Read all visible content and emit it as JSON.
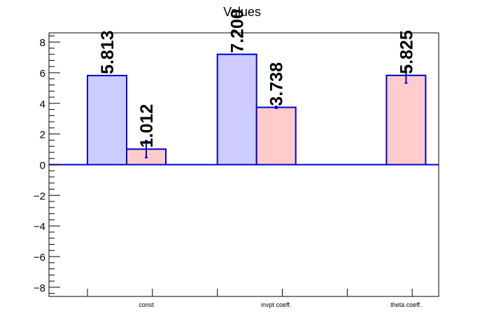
{
  "chart_data": {
    "type": "bar",
    "title": "Values",
    "xlabel": "",
    "ylabel": "",
    "ylim": [
      -8.6,
      8.6
    ],
    "yticks": [
      -8,
      -6,
      -4,
      -2,
      0,
      2,
      4,
      6,
      8
    ],
    "ytick_labels": [
      "−8",
      "−6",
      "−4",
      "−2",
      "0",
      "2",
      "4",
      "6",
      "8"
    ],
    "categories": [
      "const",
      "invpt coeff.",
      "theta coeff."
    ],
    "grid": false,
    "legend": "none",
    "series": [
      {
        "fill": "#ccccff",
        "stroke": "#0000cc",
        "values": [
          5.813,
          7.2,
          null
        ],
        "labels": [
          "5.813",
          "7.200",
          ""
        ],
        "errors": [
          null,
          null,
          null
        ]
      },
      {
        "fill": "#ffcccc",
        "stroke": "#0000cc",
        "values": [
          1.012,
          3.738,
          5.825
        ],
        "labels": [
          "1.012",
          "3.738",
          "5.825"
        ],
        "errors": [
          0.55,
          0.06,
          0.5
        ]
      }
    ]
  }
}
